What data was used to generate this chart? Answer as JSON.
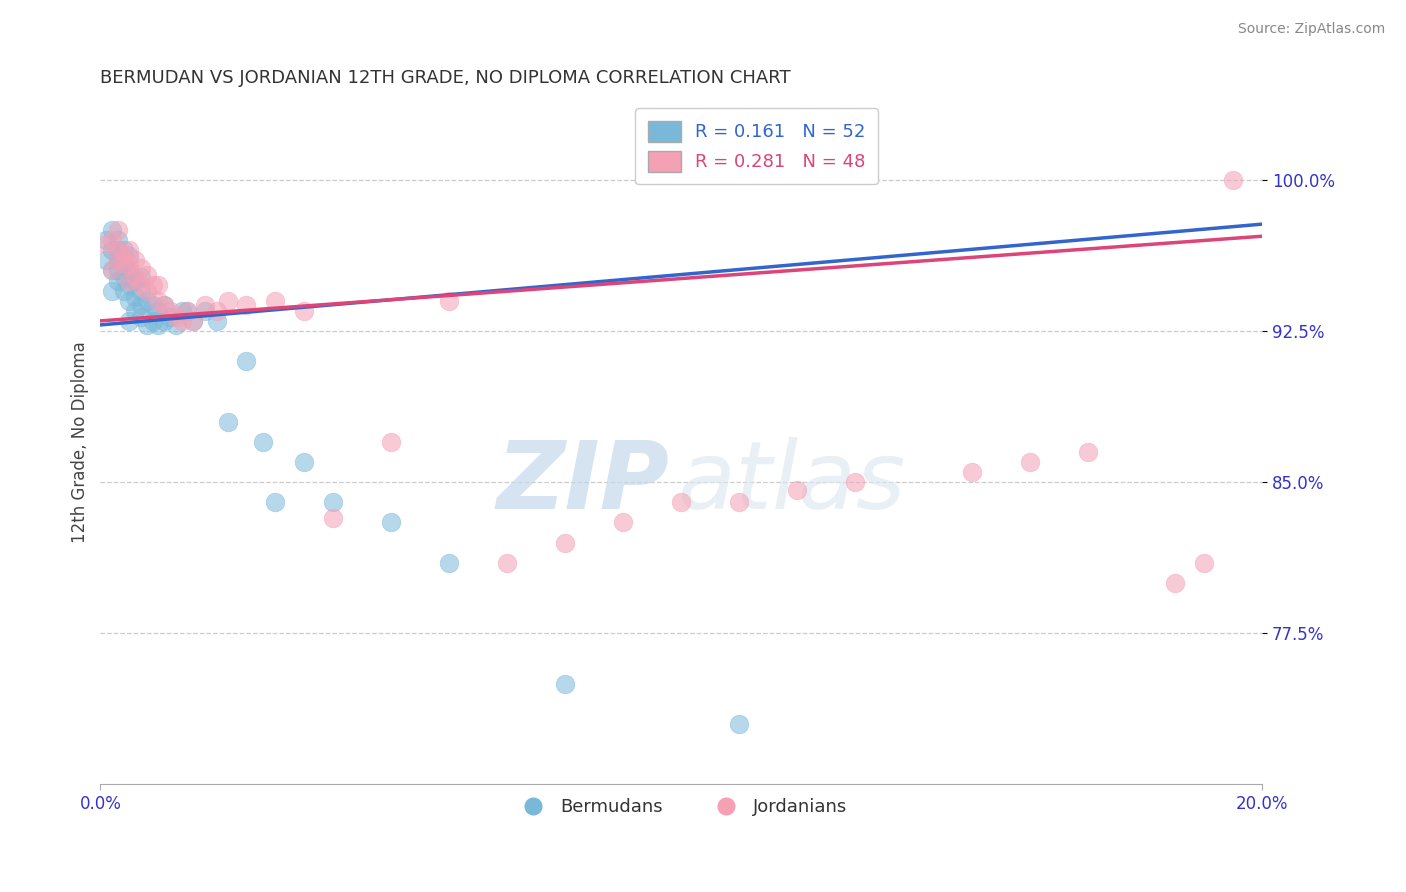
{
  "title": "BERMUDAN VS JORDANIAN 12TH GRADE, NO DIPLOMA CORRELATION CHART",
  "source": "Source: ZipAtlas.com",
  "ylabel": "12th Grade, No Diploma",
  "ytick_labels": [
    "77.5%",
    "85.0%",
    "92.5%",
    "100.0%"
  ],
  "ytick_values": [
    0.775,
    0.85,
    0.925,
    1.0
  ],
  "xmin": 0.0,
  "xmax": 0.2,
  "ymin": 0.7,
  "ymax": 1.04,
  "legend_blue_r": "0.161",
  "legend_blue_n": "52",
  "legend_pink_r": "0.281",
  "legend_pink_n": "48",
  "blue_color": "#7ab8d9",
  "pink_color": "#f4a0b5",
  "line_blue_color": "#3366cc",
  "line_pink_color": "#dd4477",
  "blue_scatter_x": [
    0.001,
    0.001,
    0.002,
    0.002,
    0.002,
    0.002,
    0.003,
    0.003,
    0.003,
    0.003,
    0.003,
    0.004,
    0.004,
    0.004,
    0.004,
    0.005,
    0.005,
    0.005,
    0.005,
    0.005,
    0.006,
    0.006,
    0.006,
    0.007,
    0.007,
    0.007,
    0.007,
    0.008,
    0.008,
    0.009,
    0.009,
    0.01,
    0.01,
    0.011,
    0.011,
    0.012,
    0.013,
    0.014,
    0.015,
    0.016,
    0.018,
    0.02,
    0.022,
    0.025,
    0.028,
    0.03,
    0.035,
    0.04,
    0.05,
    0.06,
    0.08,
    0.11
  ],
  "blue_scatter_y": [
    0.96,
    0.97,
    0.945,
    0.955,
    0.965,
    0.975,
    0.95,
    0.955,
    0.96,
    0.965,
    0.97,
    0.945,
    0.952,
    0.958,
    0.965,
    0.93,
    0.94,
    0.948,
    0.955,
    0.962,
    0.935,
    0.942,
    0.95,
    0.932,
    0.938,
    0.945,
    0.952,
    0.928,
    0.94,
    0.93,
    0.938,
    0.928,
    0.935,
    0.93,
    0.938,
    0.932,
    0.928,
    0.935,
    0.935,
    0.93,
    0.935,
    0.93,
    0.88,
    0.91,
    0.87,
    0.84,
    0.86,
    0.84,
    0.83,
    0.81,
    0.75,
    0.73
  ],
  "pink_scatter_x": [
    0.001,
    0.002,
    0.002,
    0.003,
    0.003,
    0.003,
    0.004,
    0.004,
    0.005,
    0.005,
    0.005,
    0.006,
    0.006,
    0.007,
    0.007,
    0.008,
    0.008,
    0.009,
    0.01,
    0.01,
    0.011,
    0.012,
    0.013,
    0.014,
    0.015,
    0.016,
    0.018,
    0.02,
    0.022,
    0.025,
    0.03,
    0.035,
    0.04,
    0.05,
    0.06,
    0.07,
    0.08,
    0.09,
    0.1,
    0.11,
    0.12,
    0.13,
    0.15,
    0.16,
    0.17,
    0.185,
    0.19,
    0.195
  ],
  "pink_scatter_y": [
    0.968,
    0.955,
    0.97,
    0.96,
    0.965,
    0.975,
    0.958,
    0.963,
    0.95,
    0.958,
    0.965,
    0.952,
    0.96,
    0.948,
    0.956,
    0.945,
    0.953,
    0.948,
    0.94,
    0.948,
    0.938,
    0.935,
    0.932,
    0.93,
    0.935,
    0.93,
    0.938,
    0.935,
    0.94,
    0.938,
    0.94,
    0.935,
    0.832,
    0.87,
    0.94,
    0.81,
    0.82,
    0.83,
    0.84,
    0.84,
    0.846,
    0.85,
    0.855,
    0.86,
    0.865,
    0.8,
    0.81,
    1.0
  ],
  "watermark_zip": "ZIP",
  "watermark_atlas": "atlas",
  "title_color": "#333333",
  "axis_color": "#3333cc",
  "source_color": "#888888"
}
